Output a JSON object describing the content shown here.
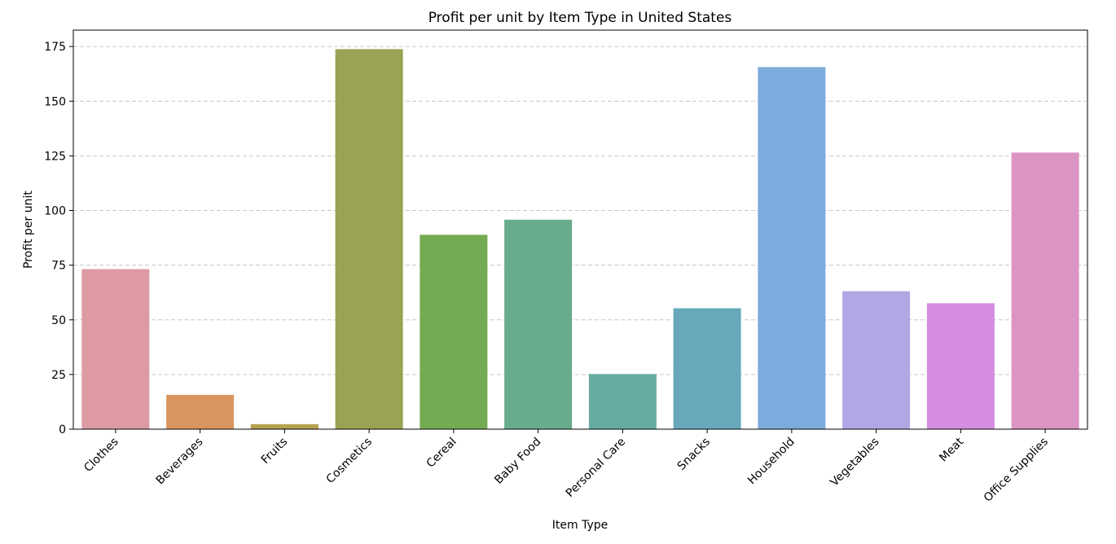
{
  "chart_data": {
    "type": "bar",
    "title": "Profit per unit by Item Type in United States",
    "xlabel": "Item Type",
    "ylabel": "Profit per unit",
    "categories": [
      "Clothes",
      "Beverages",
      "Fruits",
      "Cosmetics",
      "Cereal",
      "Baby Food",
      "Personal Care",
      "Snacks",
      "Household",
      "Vegetables",
      "Meat",
      "Office Supplies"
    ],
    "values": [
      73.2,
      15.7,
      2.3,
      173.8,
      88.9,
      95.8,
      25.2,
      55.3,
      165.6,
      63.1,
      57.6,
      126.5
    ],
    "colors": [
      "#dd9aa3",
      "#d8965e",
      "#b5a152",
      "#9aa253",
      "#73ab52",
      "#67ac8b",
      "#66aca2",
      "#67a9bb",
      "#7cacdd",
      "#b3a6e5",
      "#d48de0",
      "#dc94c3"
    ],
    "ylim": [
      0,
      182.5
    ],
    "yticks": [
      0,
      25,
      50,
      75,
      100,
      125,
      150,
      175
    ],
    "grid": "y dashed",
    "legend": "none"
  }
}
